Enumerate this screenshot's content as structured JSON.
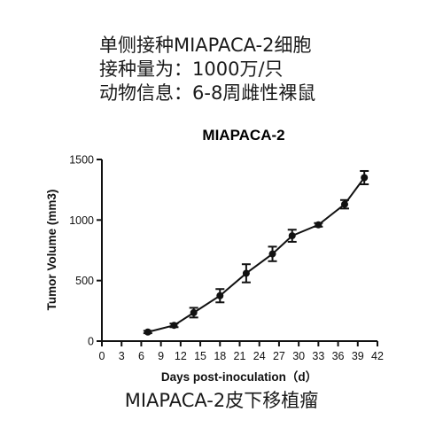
{
  "header": {
    "lines": [
      "单侧接种MIAPACA-2细胞",
      "接种量为：1000万/只",
      "动物信息：6-8周雌性裸鼠"
    ]
  },
  "caption": "MIAPACA-2皮下移植瘤",
  "chart_data": {
    "type": "line",
    "title": "MIAPACA-2",
    "xlabel": "Days post-inoculation（d）",
    "ylabel": "Tumor Volume (mm3)",
    "xlim": [
      0,
      42
    ],
    "ylim": [
      0,
      1500
    ],
    "x_ticks": [
      0,
      3,
      6,
      9,
      12,
      15,
      18,
      21,
      24,
      27,
      30,
      33,
      36,
      39,
      42
    ],
    "y_ticks": [
      0,
      500,
      1000,
      1500
    ],
    "grid": false,
    "series": [
      {
        "x": [
          7,
          11,
          14,
          18,
          22,
          26,
          29,
          33,
          37,
          40
        ],
        "y": [
          75,
          130,
          235,
          375,
          560,
          720,
          870,
          960,
          1130,
          1350
        ],
        "error": [
          10,
          15,
          40,
          55,
          75,
          60,
          50,
          15,
          35,
          55
        ]
      }
    ],
    "colors": {
      "line": "#111111",
      "marker": "#111111"
    }
  }
}
